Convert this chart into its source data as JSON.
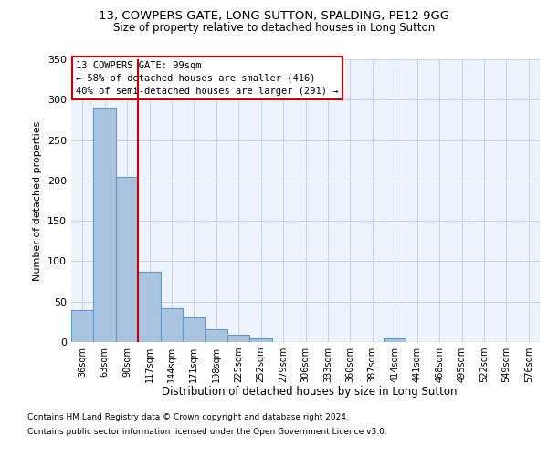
{
  "title_line1": "13, COWPERS GATE, LONG SUTTON, SPALDING, PE12 9GG",
  "title_line2": "Size of property relative to detached houses in Long Sutton",
  "xlabel": "Distribution of detached houses by size in Long Sutton",
  "ylabel": "Number of detached properties",
  "footnote1": "Contains HM Land Registry data © Crown copyright and database right 2024.",
  "footnote2": "Contains public sector information licensed under the Open Government Licence v3.0.",
  "categories": [
    "36sqm",
    "63sqm",
    "90sqm",
    "117sqm",
    "144sqm",
    "171sqm",
    "198sqm",
    "225sqm",
    "252sqm",
    "279sqm",
    "306sqm",
    "333sqm",
    "360sqm",
    "387sqm",
    "414sqm",
    "441sqm",
    "468sqm",
    "495sqm",
    "522sqm",
    "549sqm",
    "576sqm"
  ],
  "values": [
    40,
    290,
    204,
    87,
    42,
    30,
    16,
    9,
    5,
    0,
    0,
    0,
    0,
    0,
    4,
    0,
    0,
    0,
    0,
    0,
    0
  ],
  "bar_color": "#aac4e0",
  "bar_edge_color": "#5b9bd5",
  "grid_color": "#c8d4e8",
  "background_color": "#eef2fa",
  "vline_color": "#cc0000",
  "vline_x": 2.5,
  "annotation_line1": "13 COWPERS GATE: 99sqm",
  "annotation_line2": "← 58% of detached houses are smaller (416)",
  "annotation_line3": "40% of semi-detached houses are larger (291) →",
  "annotation_box_facecolor": "white",
  "annotation_box_edgecolor": "#cc0000",
  "ylim_max": 340,
  "yticks": [
    0,
    50,
    100,
    150,
    200,
    250,
    300,
    350
  ]
}
